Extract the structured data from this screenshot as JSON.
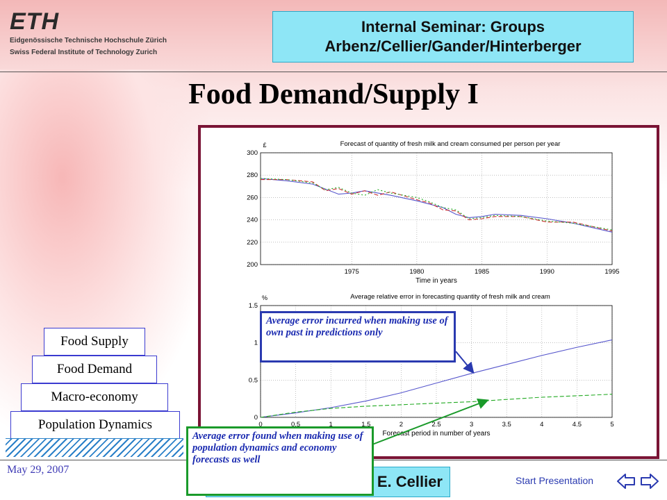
{
  "logo": {
    "main": "ETH",
    "line1": "Eidgenössische Technische Hochschule Zürich",
    "line2": "Swiss Federal Institute of Technology Zurich"
  },
  "header": {
    "line1": "Internal Seminar: Groups",
    "line2": "Arbenz/Cellier/Gander/Hinterberger"
  },
  "title": "Food Demand/Supply I",
  "pyramid": [
    "Food Supply",
    "Food Demand",
    "Macro-economy",
    "Population Dynamics"
  ],
  "footer": {
    "date": "May 29, 2007",
    "author": "s E. Cellier",
    "start": "Start Presentation"
  },
  "callouts": {
    "own_past": "Average error incurred when making use of own past in predictions only",
    "with_forecasts": "Average error found when making use of population dynamics and economy forecasts as well"
  },
  "colors": {
    "frame": "#7a1435",
    "header_bg": "#8ee6f6",
    "callout_blue": "#2a3ab0",
    "callout_green": "#1a9a2a"
  },
  "chart_data": [
    {
      "type": "line",
      "title": "Forecast of quantity of fresh milk and cream consumed per person per year",
      "unit_label": "£",
      "xlabel": "Time in years",
      "ylabel": "",
      "xlim": [
        1968,
        1995
      ],
      "ylim": [
        200,
        300
      ],
      "xticks": [
        1975,
        1980,
        1985,
        1990,
        1995
      ],
      "yticks": [
        200,
        220,
        240,
        260,
        280,
        300
      ],
      "grid": true,
      "series": [
        {
          "color": "#5555cc",
          "dash": "",
          "x": [
            1968,
            1970,
            1972,
            1974,
            1975,
            1976,
            1978,
            1980,
            1982,
            1983,
            1984,
            1985,
            1986,
            1988,
            1990,
            1992,
            1995
          ],
          "y": [
            277,
            275,
            272,
            263,
            264,
            266,
            262,
            257,
            251,
            245,
            242,
            243,
            245,
            244,
            241,
            237,
            229
          ]
        },
        {
          "color": "#cc3333",
          "dash": "6,3",
          "x": [
            1968,
            1970,
            1972,
            1973,
            1974,
            1975,
            1976,
            1977,
            1978,
            1980,
            1981,
            1982,
            1983,
            1984,
            1985,
            1986,
            1988,
            1990,
            1992,
            1995
          ],
          "y": [
            276,
            276,
            274,
            266,
            268,
            263,
            266,
            262,
            265,
            258,
            255,
            249,
            248,
            240,
            241,
            243,
            243,
            238,
            238,
            230
          ]
        },
        {
          "color": "#22aa22",
          "dash": "2,3",
          "x": [
            1968,
            1970,
            1972,
            1973,
            1974,
            1975,
            1976,
            1977,
            1978,
            1980,
            1981,
            1982,
            1983,
            1984,
            1985,
            1986,
            1988,
            1990,
            1992,
            1995
          ],
          "y": [
            277,
            276,
            273,
            267,
            269,
            264,
            262,
            267,
            264,
            260,
            256,
            251,
            249,
            241,
            242,
            244,
            243,
            239,
            237,
            231
          ]
        }
      ]
    },
    {
      "type": "line",
      "title": "Average relative error in forecasting quantity of fresh milk and cream",
      "unit_label": "%",
      "xlabel": "Forecast period in number of years",
      "ylabel": "",
      "xlim": [
        0,
        5
      ],
      "ylim": [
        0,
        1.5
      ],
      "xticks": [
        0,
        0.5,
        1,
        1.5,
        2,
        2.5,
        3,
        3.5,
        4,
        4.5,
        5
      ],
      "yticks": [
        0,
        0.5,
        1,
        1.5
      ],
      "grid": true,
      "series": [
        {
          "color": "#5555cc",
          "dash": "",
          "x": [
            0,
            0.5,
            1,
            1.5,
            2,
            2.5,
            3,
            3.5,
            4,
            4.5,
            5
          ],
          "y": [
            0,
            0.06,
            0.13,
            0.22,
            0.33,
            0.46,
            0.59,
            0.71,
            0.83,
            0.94,
            1.04
          ]
        },
        {
          "color": "#22aa22",
          "dash": "6,3",
          "x": [
            0,
            0.5,
            1,
            1.5,
            2,
            2.5,
            3,
            3.5,
            4,
            4.5,
            5
          ],
          "y": [
            0,
            0.07,
            0.12,
            0.15,
            0.17,
            0.19,
            0.21,
            0.24,
            0.27,
            0.29,
            0.31
          ]
        }
      ]
    }
  ]
}
